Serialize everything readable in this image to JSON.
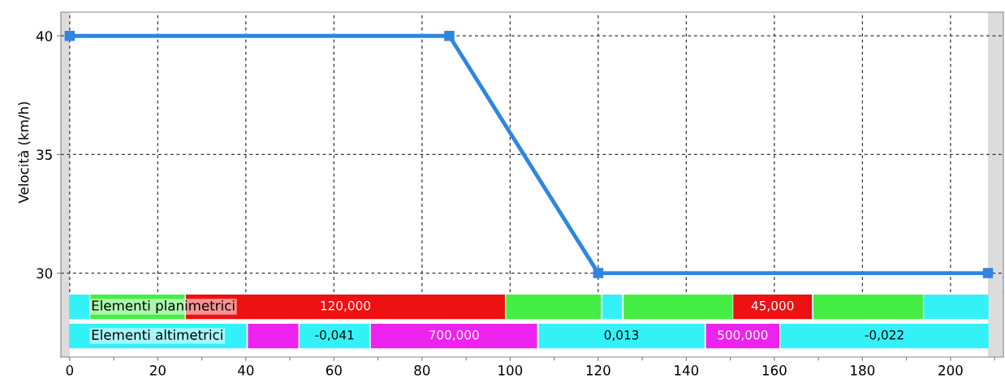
{
  "chart_data": [
    {
      "type": "line",
      "ylabel": "Velocità (km/h)",
      "xlim": [
        -2,
        212
      ],
      "xticks": [
        0,
        20,
        40,
        60,
        80,
        100,
        120,
        140,
        160,
        180,
        200
      ],
      "ylim": [
        29.2,
        41
      ],
      "yticks": [
        30,
        35,
        40
      ],
      "grid": true,
      "tick_labels": "y",
      "marker": "square",
      "line_style": "solid",
      "series": [
        {
          "color": "#2f86e0",
          "x": [
            0,
            86.2,
            120,
            208.5
          ],
          "values": [
            40,
            40,
            30,
            30
          ]
        }
      ],
      "bands": [
        {
          "axis": "x",
          "from": -2,
          "to": 0,
          "color": "#dcdcdc"
        },
        {
          "axis": "x",
          "from": 208.5,
          "to": 212,
          "color": "#dcdcdc"
        }
      ]
    },
    {
      "type": "bar",
      "orientation": "horizontal",
      "categories": [
        "Elementi planimetrici",
        "Elementi altimetrici"
      ],
      "xlim": [
        -2,
        212
      ],
      "xticks": [
        0,
        {
          "value": 10,
          "label": null
        },
        20,
        {
          "value": 30,
          "label": null
        },
        40,
        {
          "value": 50,
          "label": null
        },
        60,
        {
          "value": 70,
          "label": null
        },
        80,
        {
          "value": 90,
          "label": null
        },
        100,
        {
          "value": 110,
          "label": null
        },
        120,
        {
          "value": 130,
          "label": null
        },
        140,
        {
          "value": 150,
          "label": null
        },
        160,
        {
          "value": 170,
          "label": null
        },
        180,
        {
          "value": 190,
          "label": null
        },
        200,
        {
          "value": 210,
          "label": null
        }
      ],
      "tick_labels": "x",
      "series": [
        {
          "color": "#33f2f7",
          "base": [
            0,
            null
          ],
          "values": [
            4.3,
            null
          ]
        },
        {
          "color": "#44ee44",
          "base": [
            4.8,
            null
          ],
          "values": [
            21.2,
            null
          ]
        },
        {
          "name": "120,000",
          "color": "#ee1111",
          "base": [
            26.5,
            null
          ],
          "values": [
            72.2,
            null
          ]
        },
        {
          "color": "#44ee44",
          "base": [
            99.2,
            null
          ],
          "values": [
            21.3,
            null
          ]
        },
        {
          "color": "#33f2f7",
          "base": [
            121.1,
            null
          ],
          "values": [
            4.2,
            null
          ]
        },
        {
          "color": "#44ee44",
          "base": [
            125.9,
            null
          ],
          "values": [
            24.5,
            null
          ]
        },
        {
          "name": "45,000",
          "color": "#ee1111",
          "base": [
            150.8,
            null
          ],
          "values": [
            17.6,
            null
          ]
        },
        {
          "color": "#44ee44",
          "base": [
            169.0,
            null
          ],
          "values": [
            24.6,
            null
          ]
        },
        {
          "color": "#33f2f7",
          "base": [
            194.1,
            null
          ],
          "values": [
            14.4,
            null
          ]
        },
        {
          "color": "#33f2f7",
          "base": [
            null,
            0
          ],
          "values": [
            null,
            40.0
          ]
        },
        {
          "color": "#ee22ee",
          "base": [
            null,
            40.6
          ],
          "values": [
            null,
            11.2
          ]
        },
        {
          "name": "-0,041",
          "color": "#33f2f7",
          "base": [
            null,
            52.3
          ],
          "values": [
            null,
            15.7
          ]
        },
        {
          "name": "700,000",
          "color": "#ee22ee",
          "base": [
            null,
            68.5
          ],
          "values": [
            null,
            37.5
          ]
        },
        {
          "name": "0,013",
          "color": "#33f2f7",
          "base": [
            null,
            106.6
          ],
          "values": [
            null,
            37.4
          ]
        },
        {
          "name": "500,000",
          "color": "#ee22ee",
          "base": [
            null,
            144.6
          ],
          "values": [
            null,
            16.4
          ]
        },
        {
          "name": "-0,022",
          "color": "#33f2f7",
          "base": [
            null,
            161.5
          ],
          "values": [
            null,
            47.0
          ]
        }
      ],
      "bands": [
        {
          "axis": "x",
          "from": -2,
          "to": 0,
          "color": "#dcdcdc"
        },
        {
          "axis": "x",
          "from": 208.5,
          "to": 212,
          "color": "#dcdcdc"
        }
      ]
    }
  ]
}
